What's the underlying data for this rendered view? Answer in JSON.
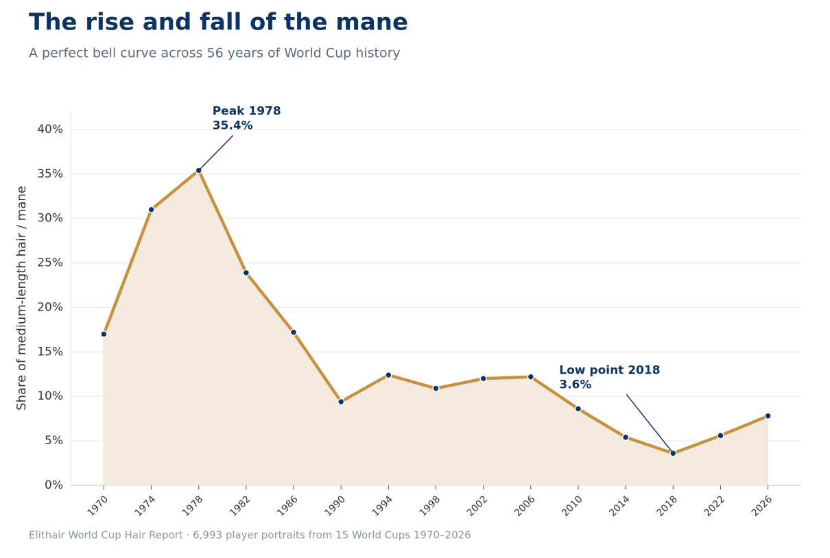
{
  "chart_data": {
    "type": "line",
    "title": "The rise and fall of the mane",
    "subtitle": "A perfect bell curve across 56 years of World Cup history",
    "y_label": "Share of medium-length hair / mane",
    "source": "Elithair World Cup Hair Report  ·  6,993 player portraits from 15 World Cups 1970–2026",
    "x": [
      1970,
      1974,
      1978,
      1982,
      1986,
      1990,
      1994,
      1998,
      2002,
      2006,
      2010,
      2014,
      2018,
      2022,
      2026
    ],
    "series": [
      {
        "color": "#c8913f",
        "area_color": "#f4eadd",
        "marker_color": "#0d3463",
        "values": [
          17.0,
          31.0,
          35.4,
          23.9,
          17.2,
          9.4,
          12.4,
          10.9,
          12.0,
          12.2,
          8.6,
          5.4,
          3.6,
          5.6,
          7.8
        ]
      }
    ],
    "xlim": [
      1967.2,
      2028.8
    ],
    "xticks": [
      1970,
      1974,
      1978,
      1982,
      1986,
      1990,
      1994,
      1998,
      2002,
      2006,
      2010,
      2014,
      2018,
      2022,
      2026
    ],
    "ylim": [
      0,
      42
    ],
    "yticks": [
      {
        "value": 0,
        "label": "0%"
      },
      {
        "value": 5,
        "label": "5%"
      },
      {
        "value": 10,
        "label": "10%"
      },
      {
        "value": 15,
        "label": "15%"
      },
      {
        "value": 20,
        "label": "20%"
      },
      {
        "value": 25,
        "label": "25%"
      },
      {
        "value": 30,
        "label": "30%"
      },
      {
        "value": 35,
        "label": "35%"
      },
      {
        "value": 40,
        "label": "40%"
      }
    ],
    "grid": true,
    "annotations": [
      {
        "label": "Peak 1978",
        "value_label": "35.4%",
        "x": 1978,
        "y": 35.4
      },
      {
        "label": "Low point 2018",
        "value_label": "3.6%",
        "x": 2018,
        "y": 3.6
      }
    ]
  }
}
